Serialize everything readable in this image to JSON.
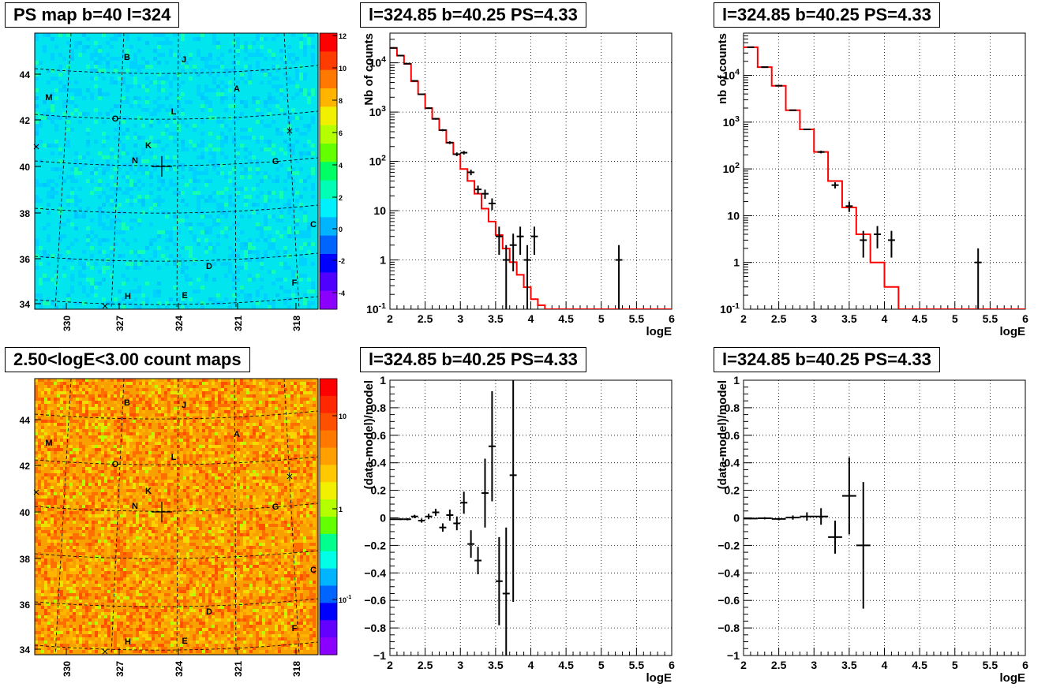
{
  "titles": {
    "ps_map": "PS map b=40 l=324",
    "count_map": "2.50<logE<3.00 count maps",
    "spectrum_a": "l=324.85 b=40.25 PS=4.33",
    "spectrum_b": "l=324.85 b=40.25 PS=4.33",
    "residual_a": "l=324.85 b=40.25 PS=4.33",
    "residual_b": "l=324.85 b=40.25 PS=4.33"
  },
  "maps": {
    "y_ticks": [
      "44",
      "42",
      "40",
      "38",
      "36",
      "34"
    ],
    "x_ticks": [
      "330",
      "327",
      "324",
      "321",
      "318"
    ],
    "source_labels": [
      "B",
      "J",
      "A",
      "M",
      "L",
      "O",
      "K",
      "N",
      "G",
      "C",
      "D",
      "F",
      "H",
      "E"
    ],
    "ps_colorbar_ticks": [
      "12",
      "10",
      "8",
      "6",
      "4",
      "2",
      "0",
      "-2",
      "-4"
    ],
    "count_colorbar_ticks": [
      "10",
      "1",
      "10",
      "-1"
    ],
    "colors": {
      "ps_background": "#00e5ee",
      "count_background": "#f7a000",
      "marker": "#000000"
    }
  },
  "chart_data": [
    {
      "type": "line",
      "title": "l=324.85 b=40.25 PS=4.33",
      "xlabel": "logE",
      "ylabel": "Nb of counts",
      "xlim": [
        2,
        6
      ],
      "ylim": [
        0.1,
        40000
      ],
      "yscale": "log",
      "grid": true,
      "x_ticks": [
        "2",
        "2.5",
        "3",
        "3.5",
        "4",
        "4.5",
        "5",
        "5.5",
        "6"
      ],
      "y_ticks": [
        "10^-1",
        "1",
        "10",
        "10^2",
        "10^3",
        "10^4"
      ],
      "series": [
        {
          "kind": "model-step",
          "color": "#ff0000",
          "bin_edges": [
            2.0,
            2.1,
            2.2,
            2.3,
            2.4,
            2.5,
            2.6,
            2.7,
            2.8,
            2.9,
            3.0,
            3.1,
            3.2,
            3.3,
            3.4,
            3.5,
            3.6,
            3.7,
            3.8,
            3.9,
            4.0,
            4.1,
            4.2,
            6.0
          ],
          "values": [
            20000,
            14000,
            9500,
            4200,
            2300,
            1200,
            730,
            430,
            240,
            140,
            70,
            40,
            22,
            11,
            6,
            3.2,
            1.7,
            0.9,
            0.5,
            0.28,
            0.16,
            0.12,
            0.1
          ]
        },
        {
          "kind": "data-points",
          "color": "#000000",
          "x": [
            2.05,
            2.15,
            2.25,
            2.35,
            2.45,
            2.55,
            2.65,
            2.75,
            2.85,
            2.95,
            3.05,
            3.15,
            3.25,
            3.35,
            3.45,
            3.55,
            3.65,
            3.75,
            3.85,
            3.95,
            4.05,
            5.25
          ],
          "y": [
            20000,
            14000,
            9600,
            4300,
            2300,
            1200,
            730,
            430,
            240,
            140,
            150,
            60,
            27,
            22,
            14,
            3,
            1,
            2,
            3,
            1,
            3,
            1
          ]
        }
      ]
    },
    {
      "type": "line",
      "title": "l=324.85 b=40.25 PS=4.33",
      "xlabel": "logE",
      "ylabel": "nb of counts",
      "xlim": [
        2,
        6
      ],
      "ylim": [
        0.1,
        80000
      ],
      "yscale": "log",
      "grid": true,
      "x_ticks": [
        "2",
        "2.5",
        "3",
        "3.5",
        "4",
        "4.5",
        "5",
        "5.5",
        "6"
      ],
      "y_ticks": [
        "10^-1",
        "1",
        "10",
        "10^2",
        "10^3",
        "10^4"
      ],
      "series": [
        {
          "kind": "model-step",
          "color": "#ff0000",
          "bin_edges": [
            2.0,
            2.2,
            2.4,
            2.6,
            2.8,
            3.0,
            3.2,
            3.4,
            3.6,
            3.8,
            4.0,
            4.2,
            6.0
          ],
          "values": [
            40000,
            15000,
            6000,
            1800,
            700,
            230,
            55,
            15,
            4,
            1,
            0.3,
            0.1
          ]
        },
        {
          "kind": "data-points",
          "color": "#000000",
          "x": [
            2.1,
            2.3,
            2.5,
            2.7,
            2.9,
            3.1,
            3.3,
            3.5,
            3.7,
            3.9,
            4.1,
            5.33
          ],
          "y": [
            40000,
            15000,
            6000,
            1800,
            700,
            230,
            45,
            16,
            3,
            4,
            3,
            1
          ]
        }
      ]
    },
    {
      "type": "scatter",
      "title": "l=324.85 b=40.25 PS=4.33",
      "xlabel": "logE",
      "ylabel": "(data-model)/model",
      "xlim": [
        2,
        6
      ],
      "ylim": [
        -1,
        1
      ],
      "grid": true,
      "x_ticks": [
        "2",
        "2.5",
        "3",
        "3.5",
        "4",
        "4.5",
        "5",
        "5.5",
        "6"
      ],
      "y_ticks": [
        "−1",
        "−0.8",
        "−0.6",
        "−0.4",
        "−0.2",
        "0",
        "0.2",
        "0.4",
        "0.6",
        "0.8",
        "1"
      ],
      "series": [
        {
          "color": "#000000",
          "x": [
            2.05,
            2.15,
            2.25,
            2.35,
            2.45,
            2.55,
            2.65,
            2.75,
            2.85,
            2.95,
            3.05,
            3.15,
            3.25,
            3.35,
            3.45,
            3.55,
            3.65,
            3.75
          ],
          "y": [
            -0.01,
            -0.01,
            -0.01,
            0.01,
            -0.02,
            0.01,
            0.04,
            -0.07,
            0.02,
            -0.04,
            0.11,
            -0.19,
            -0.31,
            0.18,
            0.52,
            -0.46,
            -0.55,
            0.31
          ],
          "err": [
            0.005,
            0.006,
            0.008,
            0.012,
            0.015,
            0.02,
            0.025,
            0.03,
            0.04,
            0.05,
            0.08,
            0.1,
            0.1,
            0.25,
            0.4,
            0.32,
            0.48,
            0.92
          ]
        }
      ]
    },
    {
      "type": "scatter",
      "title": "l=324.85 b=40.25 PS=4.33",
      "xlabel": "logE",
      "ylabel": "(data-model)/model",
      "xlim": [
        2,
        6
      ],
      "ylim": [
        -1,
        1
      ],
      "grid": true,
      "x_ticks": [
        "2",
        "2.5",
        "3",
        "3.5",
        "4",
        "4.5",
        "5",
        "5.5",
        "6"
      ],
      "y_ticks": [
        "−1",
        "−0.8",
        "−0.6",
        "−0.4",
        "−0.2",
        "0",
        "0.2",
        "0.4",
        "0.6",
        "0.8",
        "1"
      ],
      "series": [
        {
          "color": "#000000",
          "x": [
            2.1,
            2.3,
            2.5,
            2.7,
            2.9,
            3.1,
            3.3,
            3.5,
            3.7
          ],
          "y": [
            -0.005,
            -0.003,
            -0.008,
            0.002,
            0.01,
            0.01,
            -0.14,
            0.16,
            -0.2
          ],
          "err": [
            0.006,
            0.008,
            0.01,
            0.015,
            0.03,
            0.06,
            0.12,
            0.28,
            0.46
          ]
        }
      ]
    }
  ]
}
